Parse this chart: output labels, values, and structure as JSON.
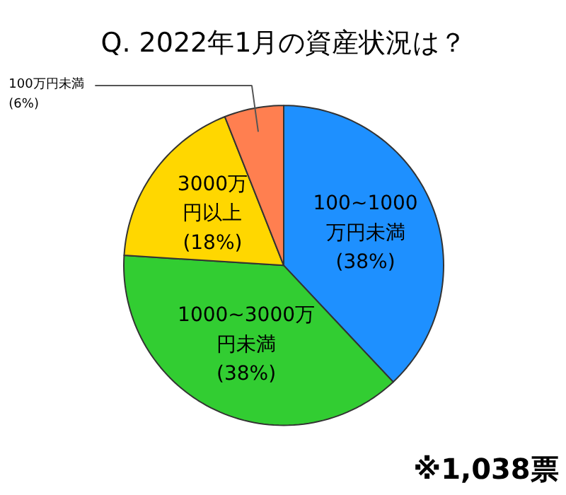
{
  "chart_data": {
    "type": "pie",
    "title": "Q. 2022年1月の資産状況は？",
    "categories": [
      "100~1000万円未満",
      "1000~3000万円未満",
      "3000万円以上",
      "100万円未満"
    ],
    "values": [
      38,
      38,
      18,
      6
    ],
    "value_labels": [
      "(38%)",
      "(38%)",
      "(18%)",
      "(6%)"
    ],
    "colors": [
      "#1e90ff",
      "#32cd32",
      "#ffd700",
      "#ff7f50"
    ],
    "annotations": [
      "※1,038票"
    ]
  }
}
